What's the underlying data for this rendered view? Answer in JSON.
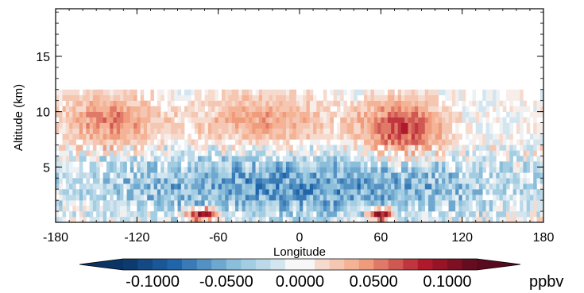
{
  "chart_data": {
    "type": "heatmap",
    "title": "",
    "xlabel": "Longitude",
    "ylabel": "Altitude (km)",
    "xlim": [
      -180,
      180
    ],
    "ylim": [
      0,
      19.3
    ],
    "x_ticks": [
      -180,
      -120,
      -60,
      0,
      60,
      120,
      180
    ],
    "x_tick_labels": [
      "-180",
      "-120",
      "-60",
      "0",
      "60",
      "120",
      "180"
    ],
    "y_ticks": [
      5,
      10,
      15
    ],
    "y_tick_labels": [
      "5",
      "10",
      "15"
    ],
    "grid": false,
    "colorbar": {
      "unit": "ppbv",
      "range": [
        -0.12,
        0.12
      ],
      "levels": 24,
      "extend": "both",
      "tick_values": [
        -0.1,
        -0.05,
        0.0,
        0.05,
        0.1
      ],
      "tick_labels": [
        "-0.1000",
        "-0.0500",
        "0.0000",
        "0.0500",
        "0.1000"
      ],
      "low_color": "#0a3466",
      "mid_color": "#f7f7f7",
      "high_color": "#5a0a1e"
    },
    "features": [
      {
        "region": "upper troposphere",
        "lon_range": [
          -180,
          -100
        ],
        "alt_range": [
          6.5,
          12
        ],
        "sign": "positive",
        "peak": 0.05
      },
      {
        "region": "upper troposphere",
        "lon_range": [
          -85,
          30
        ],
        "alt_range": [
          6.5,
          12
        ],
        "sign": "positive",
        "peak": 0.04
      },
      {
        "region": "upper troposphere",
        "lon_range": [
          40,
          110
        ],
        "alt_range": [
          5.5,
          11.5
        ],
        "sign": "positive",
        "peak": 0.07
      },
      {
        "region": "lower troposphere",
        "lon_range": [
          -180,
          180
        ],
        "alt_range": [
          0,
          6.5
        ],
        "sign": "negative",
        "peak": -0.06
      },
      {
        "region": "surface",
        "lon_range": [
          -85,
          -60
        ],
        "alt_range": [
          0,
          1.5
        ],
        "sign": "positive",
        "peak": 0.11
      },
      {
        "region": "surface",
        "lon_range": [
          50,
          70
        ],
        "alt_range": [
          0,
          1.5
        ],
        "sign": "positive",
        "peak": 0.11
      }
    ]
  }
}
